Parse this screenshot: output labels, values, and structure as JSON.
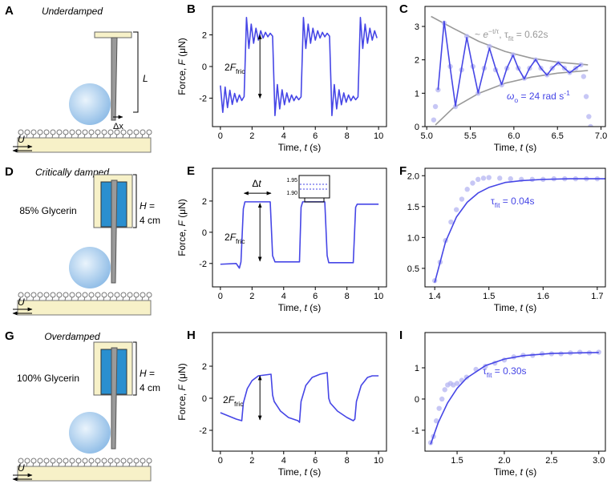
{
  "schematics": [
    {
      "panel": "A",
      "title": "Underdamped",
      "length": "L",
      "displacement": "Δx",
      "velocity": "U"
    },
    {
      "panel": "D",
      "title": "Critically damped",
      "fluid": "85% Glycerin",
      "height_symbol": "H",
      "height_eq": " =",
      "height_value": "4 cm",
      "velocity": "U"
    },
    {
      "panel": "G",
      "title": "Overdamped",
      "fluid": "100% Glycerin",
      "height_symbol": "H",
      "height_eq": " =",
      "height_value": "4 cm",
      "velocity": "U"
    }
  ],
  "chart_data": [
    {
      "type": "line",
      "panel": "B",
      "xlabel": [
        "Time, ",
        "t",
        " (s)"
      ],
      "ylabel": [
        "Force, ",
        "F",
        " (μN)"
      ],
      "xlim": [
        -0.5,
        10.5
      ],
      "ylim": [
        -3.8,
        3.8
      ],
      "xticks": [
        0,
        2,
        4,
        6,
        8,
        10
      ],
      "yticks": [
        -2,
        0,
        2
      ],
      "series": [
        {
          "type": "line",
          "color": "#4646e6",
          "x": [
            0,
            0.15,
            0.3,
            0.45,
            0.6,
            0.75,
            0.9,
            1.05,
            1.2,
            1.35,
            1.5,
            1.65,
            1.8,
            1.95,
            2.1,
            2.25,
            2.4,
            2.55,
            2.7,
            2.85,
            3,
            3.15,
            3.3,
            3.45,
            3.6,
            3.75,
            3.9,
            4.05,
            4.2,
            4.35,
            4.5,
            4.65,
            4.8,
            4.95,
            5.1,
            5.25,
            5.4,
            5.55,
            5.7,
            5.85,
            6,
            6.15,
            6.3,
            6.45,
            6.6,
            6.75,
            6.9,
            7.05,
            7.2,
            7.35,
            7.5,
            7.65,
            7.8,
            7.95,
            8.1,
            8.25,
            8.4,
            8.55,
            8.7,
            8.85,
            9,
            9.15,
            9.3,
            9.45,
            9.6,
            9.75,
            9.9
          ],
          "values": [
            -1.2,
            -2.9,
            -1.3,
            -2.6,
            -1.5,
            -2.4,
            -1.7,
            -2.25,
            -1.8,
            -2.15,
            -1.9,
            3.1,
            1.14,
            2.68,
            1.47,
            2.42,
            1.67,
            2.26,
            1.8,
            2.16,
            1.88,
            2.1,
            1.92,
            -3.1,
            -1.14,
            -2.68,
            -1.47,
            -2.42,
            -1.67,
            -2.26,
            -1.8,
            -2.16,
            -1.88,
            -2.1,
            -1.92,
            3.1,
            1.14,
            2.68,
            1.47,
            2.42,
            1.67,
            2.26,
            1.8,
            2.16,
            1.88,
            2.1,
            1.92,
            -3.1,
            -1.14,
            -2.68,
            -1.47,
            -2.42,
            -1.67,
            -2.26,
            -1.8,
            -2.16,
            -1.88,
            -2.1,
            -1.92,
            3.1,
            1.14,
            2.68,
            1.47,
            2.42,
            1.67,
            2.26,
            1.8
          ]
        }
      ],
      "annotations": [
        {
          "parts": [
            "2",
            "F",
            "fric"
          ],
          "color": "#000000"
        }
      ]
    },
    {
      "type": "line",
      "panel": "C",
      "xlabel": [
        "Time, ",
        "t",
        " (s)"
      ],
      "xlim": [
        4.98,
        7.05
      ],
      "ylim": [
        0,
        3.6
      ],
      "xticks": [
        {
          "value": 5,
          "label": "5.0"
        },
        5.5,
        {
          "value": 6,
          "label": "6.0"
        },
        6.5,
        {
          "value": 7,
          "label": "7.0"
        }
      ],
      "yticks": [
        0,
        1,
        2,
        3
      ],
      "series": [
        {
          "type": "line",
          "color": "#999999",
          "x": [
            5.05,
            5.3,
            5.6,
            5.9,
            6.2,
            6.5,
            6.85
          ],
          "values": [
            3.3,
            2.95,
            2.55,
            2.25,
            2.05,
            1.93,
            1.85
          ]
        },
        {
          "type": "line",
          "color": "#999999",
          "x": [
            5.1,
            5.3,
            5.6,
            5.9,
            6.2,
            6.5,
            6.85
          ],
          "values": [
            0.05,
            0.55,
            1.0,
            1.3,
            1.48,
            1.6,
            1.68
          ]
        },
        {
          "type": "scatter",
          "color": "#b4b4f2",
          "x": [
            5.08,
            5.1,
            5.13,
            5.2,
            5.27,
            5.33,
            5.4,
            5.46,
            5.53,
            5.59,
            5.66,
            5.72,
            5.79,
            5.86,
            5.92,
            5.99,
            6.05,
            6.12,
            6.18,
            6.25,
            6.31,
            6.38,
            6.44,
            6.51,
            6.58,
            6.64,
            6.71,
            6.77,
            6.8,
            6.83,
            6.86,
            6.88
          ],
          "values": [
            0.2,
            0.6,
            1.1,
            3.1,
            1.8,
            0.6,
            1.7,
            2.7,
            1.8,
            1.0,
            1.75,
            2.4,
            1.7,
            1.25,
            1.75,
            2.15,
            1.75,
            1.45,
            1.75,
            2.0,
            1.75,
            1.55,
            1.75,
            1.9,
            1.75,
            1.62,
            1.75,
            1.85,
            1.5,
            0.9,
            0.3,
            0.0
          ]
        },
        {
          "type": "line",
          "color": "#4646e6",
          "x": [
            5.13,
            5.2,
            5.27,
            5.33,
            5.4,
            5.46,
            5.53,
            5.59,
            5.66,
            5.72,
            5.79,
            5.86,
            5.92,
            5.99,
            6.05,
            6.12,
            6.18,
            6.25,
            6.31,
            6.38,
            6.44,
            6.51,
            6.58,
            6.64,
            6.71,
            6.77
          ],
          "values": [
            1.1,
            3.15,
            1.75,
            0.62,
            1.75,
            2.67,
            1.75,
            1.01,
            1.75,
            2.35,
            1.75,
            1.26,
            1.75,
            2.14,
            1.75,
            1.43,
            1.75,
            2.01,
            1.75,
            1.54,
            1.75,
            1.92,
            1.75,
            1.61,
            1.75,
            1.86
          ]
        }
      ],
      "annotations": [
        {
          "parts": [
            "~ ",
            "e",
            "−t/τ",
            ", τ",
            "fit",
            " = 0.62s"
          ],
          "color": "#999999"
        },
        {
          "parts": [
            "ω",
            "o",
            " = 24 rad s",
            "-1"
          ],
          "color": "#4646e6"
        }
      ]
    },
    {
      "type": "line",
      "panel": "E",
      "xlabel": [
        "Time, ",
        "t",
        " (s)"
      ],
      "ylabel": [
        "Force, ",
        "F",
        " (μN)"
      ],
      "xlim": [
        -0.5,
        10.5
      ],
      "ylim": [
        -3.5,
        4.1
      ],
      "xticks": [
        0,
        2,
        4,
        6,
        8,
        10
      ],
      "yticks": [
        -2,
        0,
        2
      ],
      "series": [
        {
          "type": "line",
          "color": "#4646e6",
          "x": [
            0,
            1.0,
            1.2,
            1.3,
            1.45,
            1.55,
            3.15,
            3.3,
            3.45,
            5.0,
            5.1,
            5.2,
            6.6,
            6.75,
            6.85,
            8.4,
            8.55,
            8.65,
            10
          ],
          "values": [
            -2.05,
            -2.0,
            -2.3,
            -1.9,
            1.5,
            1.95,
            1.95,
            -1.5,
            -1.9,
            -1.9,
            1.6,
            1.95,
            1.95,
            -1.5,
            -1.95,
            -1.95,
            1.6,
            1.8,
            1.8
          ]
        }
      ],
      "annotations": [
        {
          "parts": [
            "Δ",
            "t"
          ],
          "color": "#000000"
        },
        {
          "parts": [
            "2",
            "F",
            "fric"
          ],
          "color": "#000000"
        },
        {
          "parts": [
            "1.95"
          ],
          "color": "#000000"
        },
        {
          "parts": [
            "1.90"
          ],
          "color": "#000000"
        }
      ]
    },
    {
      "type": "line",
      "panel": "F",
      "xlabel": [
        "Time, ",
        "t",
        " (s)"
      ],
      "xlim": [
        1.382,
        1.715
      ],
      "ylim": [
        0.2,
        2.12
      ],
      "xticks": [
        1.4,
        1.5,
        1.6,
        1.7
      ],
      "yticks": [
        0.5,
        {
          "value": 1,
          "label": "1.0"
        },
        1.5,
        {
          "value": 2,
          "label": "2.0"
        }
      ],
      "series": [
        {
          "type": "scatter",
          "color": "#b4b4f2",
          "x": [
            1.4,
            1.41,
            1.42,
            1.43,
            1.44,
            1.45,
            1.46,
            1.47,
            1.48,
            1.49,
            1.5,
            1.52,
            1.54,
            1.56,
            1.58,
            1.6,
            1.62,
            1.64,
            1.66,
            1.68,
            1.7,
            1.72
          ],
          "values": [
            0.3,
            0.6,
            0.95,
            1.25,
            1.45,
            1.62,
            1.78,
            1.88,
            1.94,
            1.96,
            1.97,
            1.96,
            1.95,
            1.94,
            1.94,
            1.94,
            1.95,
            1.95,
            1.95,
            1.95,
            1.95,
            1.95
          ]
        },
        {
          "type": "line",
          "color": "#4646e6",
          "x": [
            1.4,
            1.42,
            1.44,
            1.46,
            1.48,
            1.5,
            1.53,
            1.56,
            1.6,
            1.65,
            1.72
          ],
          "values": [
            0.27,
            0.93,
            1.33,
            1.57,
            1.72,
            1.81,
            1.89,
            1.92,
            1.94,
            1.95,
            1.95
          ]
        }
      ],
      "annotations": [
        {
          "parts": [
            "τ",
            "fit",
            " = 0.04s"
          ],
          "color": "#4646e6"
        }
      ]
    },
    {
      "type": "line",
      "panel": "H",
      "xlabel": [
        "Time, ",
        "t",
        " (s)"
      ],
      "ylabel": [
        "Force, ",
        "F",
        " (μN)"
      ],
      "xlim": [
        -0.5,
        10.5
      ],
      "ylim": [
        -3.3,
        4.1
      ],
      "xticks": [
        0,
        2,
        4,
        6,
        8,
        10
      ],
      "yticks": [
        -2,
        0,
        2
      ],
      "series": [
        {
          "type": "line",
          "color": "#4646e6",
          "x": [
            0,
            1.0,
            1.35,
            1.45,
            1.7,
            2.0,
            2.4,
            3.2,
            3.3,
            3.4,
            3.8,
            4.3,
            4.9,
            5.0,
            5.1,
            5.4,
            5.8,
            6.3,
            6.75,
            6.85,
            6.95,
            7.4,
            8.0,
            8.4,
            8.5,
            8.6,
            8.9,
            9.3,
            9.6,
            10
          ],
          "values": [
            -0.9,
            -1.3,
            -1.4,
            -0.3,
            0.6,
            1.1,
            1.4,
            1.5,
            0.2,
            -0.2,
            -0.8,
            -1.2,
            -1.4,
            -1.5,
            -0.2,
            0.8,
            1.3,
            1.5,
            1.6,
            0.0,
            -0.3,
            -0.8,
            -1.2,
            -1.4,
            -1.3,
            -0.2,
            0.8,
            1.3,
            1.4,
            1.4
          ]
        }
      ],
      "annotations": [
        {
          "parts": [
            "2",
            "F",
            "fric"
          ],
          "color": "#000000"
        }
      ]
    },
    {
      "type": "line",
      "panel": "I",
      "xlabel": [
        "Time, ",
        "t",
        " (s)"
      ],
      "xlim": [
        1.16,
        3.07
      ],
      "ylim": [
        -1.67,
        2.13
      ],
      "xticks": [
        1.5,
        {
          "value": 2,
          "label": "2.0"
        },
        2.5,
        {
          "value": 3,
          "label": "3.0"
        }
      ],
      "yticks": [
        -1,
        0,
        1
      ],
      "series": [
        {
          "type": "scatter",
          "color": "#b4b4f2",
          "x": [
            1.22,
            1.25,
            1.28,
            1.31,
            1.34,
            1.37,
            1.4,
            1.43,
            1.46,
            1.5,
            1.55,
            1.6,
            1.7,
            1.8,
            1.9,
            2.0,
            2.1,
            2.2,
            2.3,
            2.4,
            2.5,
            2.6,
            2.7,
            2.8,
            2.9,
            3.0
          ],
          "values": [
            -1.4,
            -1.2,
            -0.7,
            -0.3,
            0.0,
            0.3,
            0.45,
            0.5,
            0.45,
            0.5,
            0.6,
            0.7,
            0.95,
            1.05,
            1.15,
            1.25,
            1.35,
            1.4,
            1.4,
            1.45,
            1.45,
            1.45,
            1.48,
            1.5,
            1.48,
            1.5
          ]
        },
        {
          "type": "line",
          "color": "#4646e6",
          "x": [
            1.22,
            1.3,
            1.4,
            1.5,
            1.6,
            1.8,
            2.0,
            2.2,
            2.5,
            2.8,
            3.0
          ],
          "values": [
            -1.45,
            -0.76,
            -0.12,
            0.34,
            0.67,
            1.07,
            1.28,
            1.39,
            1.46,
            1.48,
            1.49
          ]
        }
      ],
      "annotations": [
        {
          "parts": [
            "τ",
            "fit",
            " = 0.30s"
          ],
          "color": "#4646e6"
        }
      ]
    }
  ]
}
